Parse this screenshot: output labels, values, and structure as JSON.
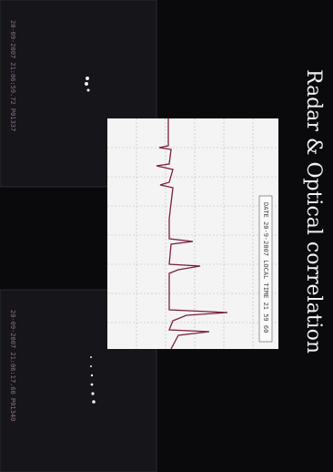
{
  "title": "Radar & Optical correlation",
  "chart_label": "DATE 20-9-2007 LOCAL TIME 21 59 60",
  "frames": [
    {
      "timestamp": "20-09-2007 21:06:59.72 P01337"
    },
    {
      "timestamp": "20-09-2007 21:06:17.60 P01340"
    }
  ]
}
